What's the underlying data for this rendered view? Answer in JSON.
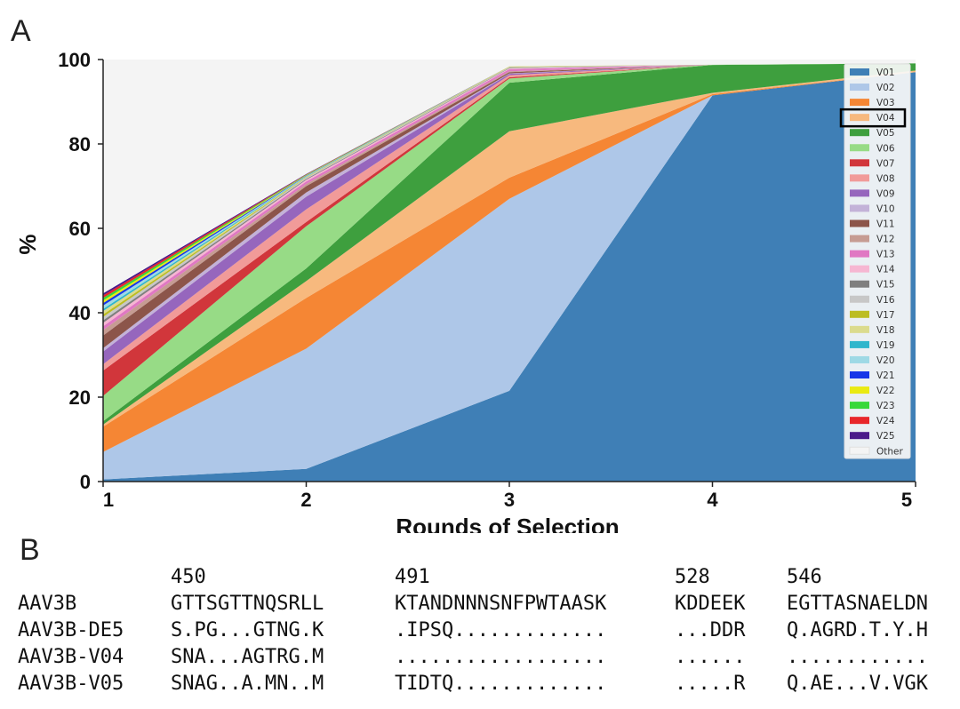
{
  "panel_a_label": "A",
  "panel_b_label": "B",
  "chart_data": {
    "type": "area",
    "stacked": true,
    "xlabel": "Rounds of Selection",
    "ylabel": "%",
    "x": [
      1,
      2,
      3,
      4,
      5
    ],
    "x_tick_labels": [
      "1",
      "2",
      "3",
      "4",
      "5"
    ],
    "ylim": [
      0,
      100
    ],
    "y_ticks": [
      0,
      20,
      40,
      60,
      80,
      100
    ],
    "y_tick_labels": [
      "0",
      "20",
      "40",
      "60",
      "80",
      "100"
    ],
    "legend_position": "right",
    "highlighted_series": "V04",
    "series": [
      {
        "name": "V01",
        "color": "#3f7fb6",
        "values": [
          0.5,
          3.0,
          21.5,
          91.5,
          97.0
        ]
      },
      {
        "name": "V02",
        "color": "#aec7e8",
        "values": [
          6.5,
          28.5,
          45.5,
          0.0,
          0.0
        ]
      },
      {
        "name": "V03",
        "color": "#f58634",
        "values": [
          6.0,
          12.0,
          5.0,
          0.3,
          0.0
        ]
      },
      {
        "name": "V04",
        "color": "#f7b97e",
        "values": [
          0.5,
          4.0,
          11.0,
          0.3,
          0.4
        ]
      },
      {
        "name": "V05",
        "color": "#3e9f3e",
        "values": [
          0.8,
          3.0,
          11.5,
          6.6,
          1.7
        ]
      },
      {
        "name": "V06",
        "color": "#97db86",
        "values": [
          6.0,
          10.0,
          1.0,
          0.1,
          0.0
        ]
      },
      {
        "name": "V07",
        "color": "#d1363b",
        "values": [
          6.0,
          1.0,
          0.3,
          0.0,
          0.0
        ]
      },
      {
        "name": "V08",
        "color": "#f19b99",
        "values": [
          1.5,
          3.0,
          0.5,
          0.0,
          0.0
        ]
      },
      {
        "name": "V09",
        "color": "#9666bd",
        "values": [
          3.0,
          3.0,
          0.3,
          0.0,
          0.0
        ]
      },
      {
        "name": "V10",
        "color": "#c3b2d8",
        "values": [
          0.8,
          1.0,
          0.1,
          0.0,
          0.0
        ]
      },
      {
        "name": "V11",
        "color": "#8c554a",
        "values": [
          3.0,
          1.5,
          0.3,
          0.0,
          0.0
        ]
      },
      {
        "name": "V12",
        "color": "#c69c93",
        "values": [
          1.3,
          0.5,
          0.2,
          0.0,
          0.0
        ]
      },
      {
        "name": "V13",
        "color": "#e078c3",
        "values": [
          0.9,
          0.6,
          0.5,
          0.0,
          0.0
        ]
      },
      {
        "name": "V14",
        "color": "#f6b6d2",
        "values": [
          0.8,
          0.4,
          0.2,
          0.0,
          0.0
        ]
      },
      {
        "name": "V15",
        "color": "#7f7f7f",
        "values": [
          0.6,
          0.2,
          0.1,
          0.0,
          0.0
        ]
      },
      {
        "name": "V16",
        "color": "#c7c7c7",
        "values": [
          0.8,
          0.3,
          0.2,
          0.0,
          0.0
        ]
      },
      {
        "name": "V17",
        "color": "#bcbd22",
        "values": [
          0.6,
          0.1,
          0.1,
          0.0,
          0.0
        ]
      },
      {
        "name": "V18",
        "color": "#dbdb8d",
        "values": [
          0.8,
          0.1,
          0.1,
          0.0,
          0.0
        ]
      },
      {
        "name": "V19",
        "color": "#2fb6cc",
        "values": [
          0.5,
          0.1,
          0.0,
          0.0,
          0.0
        ]
      },
      {
        "name": "V20",
        "color": "#9ed9e5",
        "values": [
          0.8,
          0.1,
          0.0,
          0.0,
          0.0
        ]
      },
      {
        "name": "V21",
        "color": "#1736e8",
        "values": [
          0.6,
          0.1,
          0.0,
          0.0,
          0.0
        ]
      },
      {
        "name": "V22",
        "color": "#eaea12",
        "values": [
          0.6,
          0.1,
          0.0,
          0.0,
          0.0
        ]
      },
      {
        "name": "V23",
        "color": "#37d83a",
        "values": [
          0.6,
          0.1,
          0.0,
          0.0,
          0.0
        ]
      },
      {
        "name": "V24",
        "color": "#e8262a",
        "values": [
          0.6,
          0.1,
          0.0,
          0.0,
          0.0
        ]
      },
      {
        "name": "V25",
        "color": "#4b1a8a",
        "values": [
          0.5,
          0.1,
          0.0,
          0.0,
          0.0
        ]
      },
      {
        "name": "Other",
        "color": "#f4f4f4",
        "values": [
          53.7,
          28.9,
          3.9,
          1.2,
          0.9
        ]
      }
    ]
  },
  "alignment": {
    "positions": [
      "450",
      "491",
      "528",
      "546"
    ],
    "rows": [
      {
        "name": "AAV3B",
        "segments": [
          "GTTSGTTNQSRLL",
          "KTANDNNNSNFPWTAASK",
          "KDDEEK",
          "EGTTASNAELDN"
        ]
      },
      {
        "name": "AAV3B-DE5",
        "segments": [
          "S.PG...GTNG.K",
          ".IPSQ.............",
          "...DDR",
          "Q.AGRD.T.Y.H"
        ]
      },
      {
        "name": "AAV3B-V04",
        "segments": [
          "SNA...AGTRG.M",
          "..................",
          "......",
          "............"
        ]
      },
      {
        "name": "AAV3B-V05",
        "segments": [
          "SNAG..A.MN..M",
          "TIDTQ.............",
          ".....R",
          "Q.AE...V.VGK"
        ]
      }
    ]
  }
}
